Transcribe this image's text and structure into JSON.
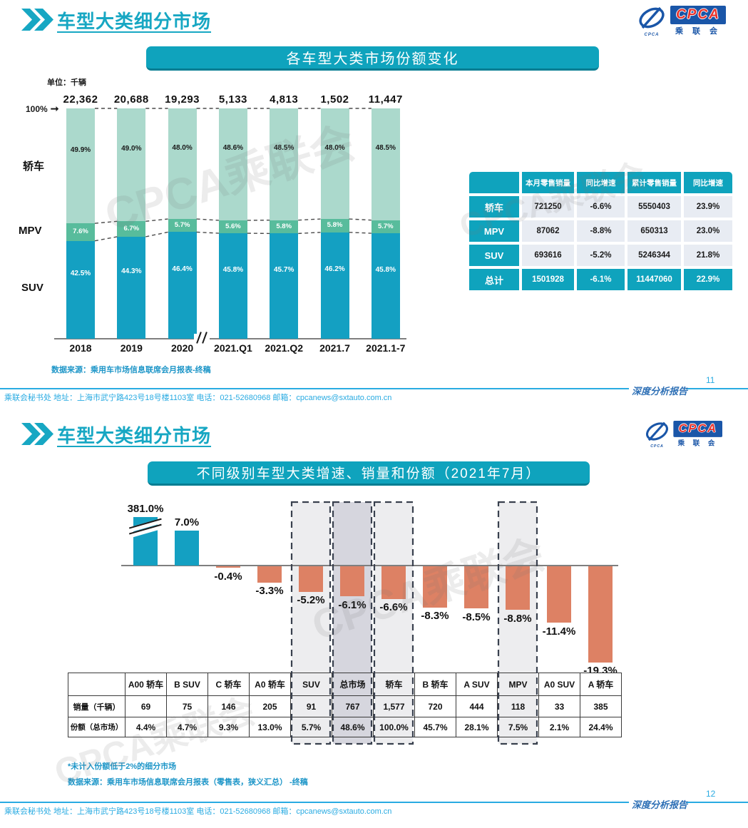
{
  "watermark": "CPCA乘联会",
  "logo": {
    "cpca": "CPCA",
    "sub": "乘 联 会",
    "caption": "CPCA"
  },
  "colors": {
    "accent_teal": "#0fa3bd",
    "suv_teal": "#14a0c2",
    "mpv_green": "#58bc9c",
    "sedan_green": "#abd9cc",
    "negative_salmon": "#dd8164",
    "footer_blue": "#29abe2",
    "note_blue": "#1e96c8"
  },
  "slide1": {
    "header": {
      "title": "车型大类细分市场"
    },
    "chart_title": "各车型大类市场份额变化",
    "unit_label": "单位：千辆",
    "axis_100_label": "100%",
    "chart_data": {
      "type": "stacked-bar",
      "categories": [
        "2018",
        "2019",
        "2020",
        "2021.Q1",
        "2021.Q2",
        "2021.7",
        "2021.1-7"
      ],
      "totals": [
        "22,362",
        "20,688",
        "19,293",
        "5,133",
        "4,813",
        "1,502",
        "11,447"
      ],
      "series": [
        {
          "name": "轿车",
          "color": "#abd9cc",
          "label_color": "#1a1a1a",
          "values": [
            49.9,
            49.0,
            48.0,
            48.6,
            48.5,
            48.0,
            48.5
          ]
        },
        {
          "name": "MPV",
          "color": "#58bc9c",
          "label_color": "#ffffff",
          "values": [
            7.6,
            6.7,
            5.7,
            5.6,
            5.8,
            5.8,
            5.7
          ]
        },
        {
          "name": "SUV",
          "color": "#14a0c2",
          "label_color": "#ffffff",
          "values": [
            42.5,
            44.3,
            46.4,
            45.8,
            45.7,
            46.2,
            45.8
          ]
        }
      ],
      "ylim": [
        0,
        100
      ],
      "axis_break_after": "2020"
    },
    "table": {
      "headers": [
        "",
        "本月零售销量",
        "同比增速",
        "累计零售销量",
        "同比增速"
      ],
      "rows": [
        {
          "label": "轿车",
          "cells": [
            "721250",
            "-6.6%",
            "5550403",
            "23.9%"
          ],
          "total": false
        },
        {
          "label": "MPV",
          "cells": [
            "87062",
            "-8.8%",
            "650313",
            "23.0%"
          ],
          "total": false
        },
        {
          "label": "SUV",
          "cells": [
            "693616",
            "-5.2%",
            "5246344",
            "21.8%"
          ],
          "total": false
        },
        {
          "label": "总计",
          "cells": [
            "1501928",
            "-6.1%",
            "11447060",
            "22.9%"
          ],
          "total": true
        }
      ]
    },
    "source": "数据来源：乘用车市场信息联席会月报表-终稿",
    "footer": {
      "text": "乘联会秘书处   地址：上海市武宁路423号18号楼1103室   电话：021-52680968   邮箱：cpcanews@sxtauto.com.cn",
      "report": "深度分析报告",
      "page": "11"
    }
  },
  "slide2": {
    "header": {
      "title": "车型大类细分市场"
    },
    "chart_title": "不同级别车型大类增速、销量和份额（2021年7月）",
    "chart_data": {
      "type": "bar",
      "categories": [
        "A00 轿车",
        "B SUV",
        "C 轿车",
        "A0 轿车",
        "SUV",
        "总市场",
        "轿车",
        "B 轿车",
        "A SUV",
        "MPV",
        "A0 SUV",
        "A 轿车"
      ],
      "values": [
        381.0,
        7.0,
        -0.4,
        -3.3,
        -5.2,
        -6.1,
        -6.6,
        -8.3,
        -8.5,
        -8.8,
        -11.4,
        -19.3
      ],
      "labels": [
        "381.0%",
        "7.0%",
        "-0.4%",
        "-3.3%",
        "-5.2%",
        "-6.1%",
        "-6.6%",
        "-8.3%",
        "-8.5%",
        "-8.8%",
        "-11.4%",
        "-19.3%"
      ],
      "positive_color": "#14a0c2",
      "negative_color": "#dd8164",
      "truncated_first_bar": true,
      "highlight_columns": [
        {
          "index": 4,
          "fill": "#ededef"
        },
        {
          "index": 5,
          "fill": "#d6d6de"
        },
        {
          "index": 6,
          "fill": "#ededef"
        },
        {
          "index": 9,
          "fill": "#ededef"
        }
      ]
    },
    "table": {
      "row_labels": [
        "销量（千辆）",
        "份额（总市场）"
      ],
      "sales": [
        "69",
        "75",
        "146",
        "205",
        "91",
        "767",
        "1,577",
        "720",
        "444",
        "118",
        "33",
        "385"
      ],
      "share": [
        "4.4%",
        "4.7%",
        "9.3%",
        "13.0%",
        "5.7%",
        "48.6%",
        "100.0%",
        "45.7%",
        "28.1%",
        "7.5%",
        "2.1%",
        "24.4%"
      ]
    },
    "notes": [
      "*未计入份额低于2%的细分市场",
      "数据来源：乘用车市场信息联席会月报表（零售表，狭义汇总） -终稿"
    ],
    "footer": {
      "text": "乘联会秘书处   地址：上海市武宁路423号18号楼1103室   电话：021-52680968   邮箱：cpcanews@sxtauto.com.cn",
      "report": "深度分析报告",
      "page": "12"
    }
  }
}
